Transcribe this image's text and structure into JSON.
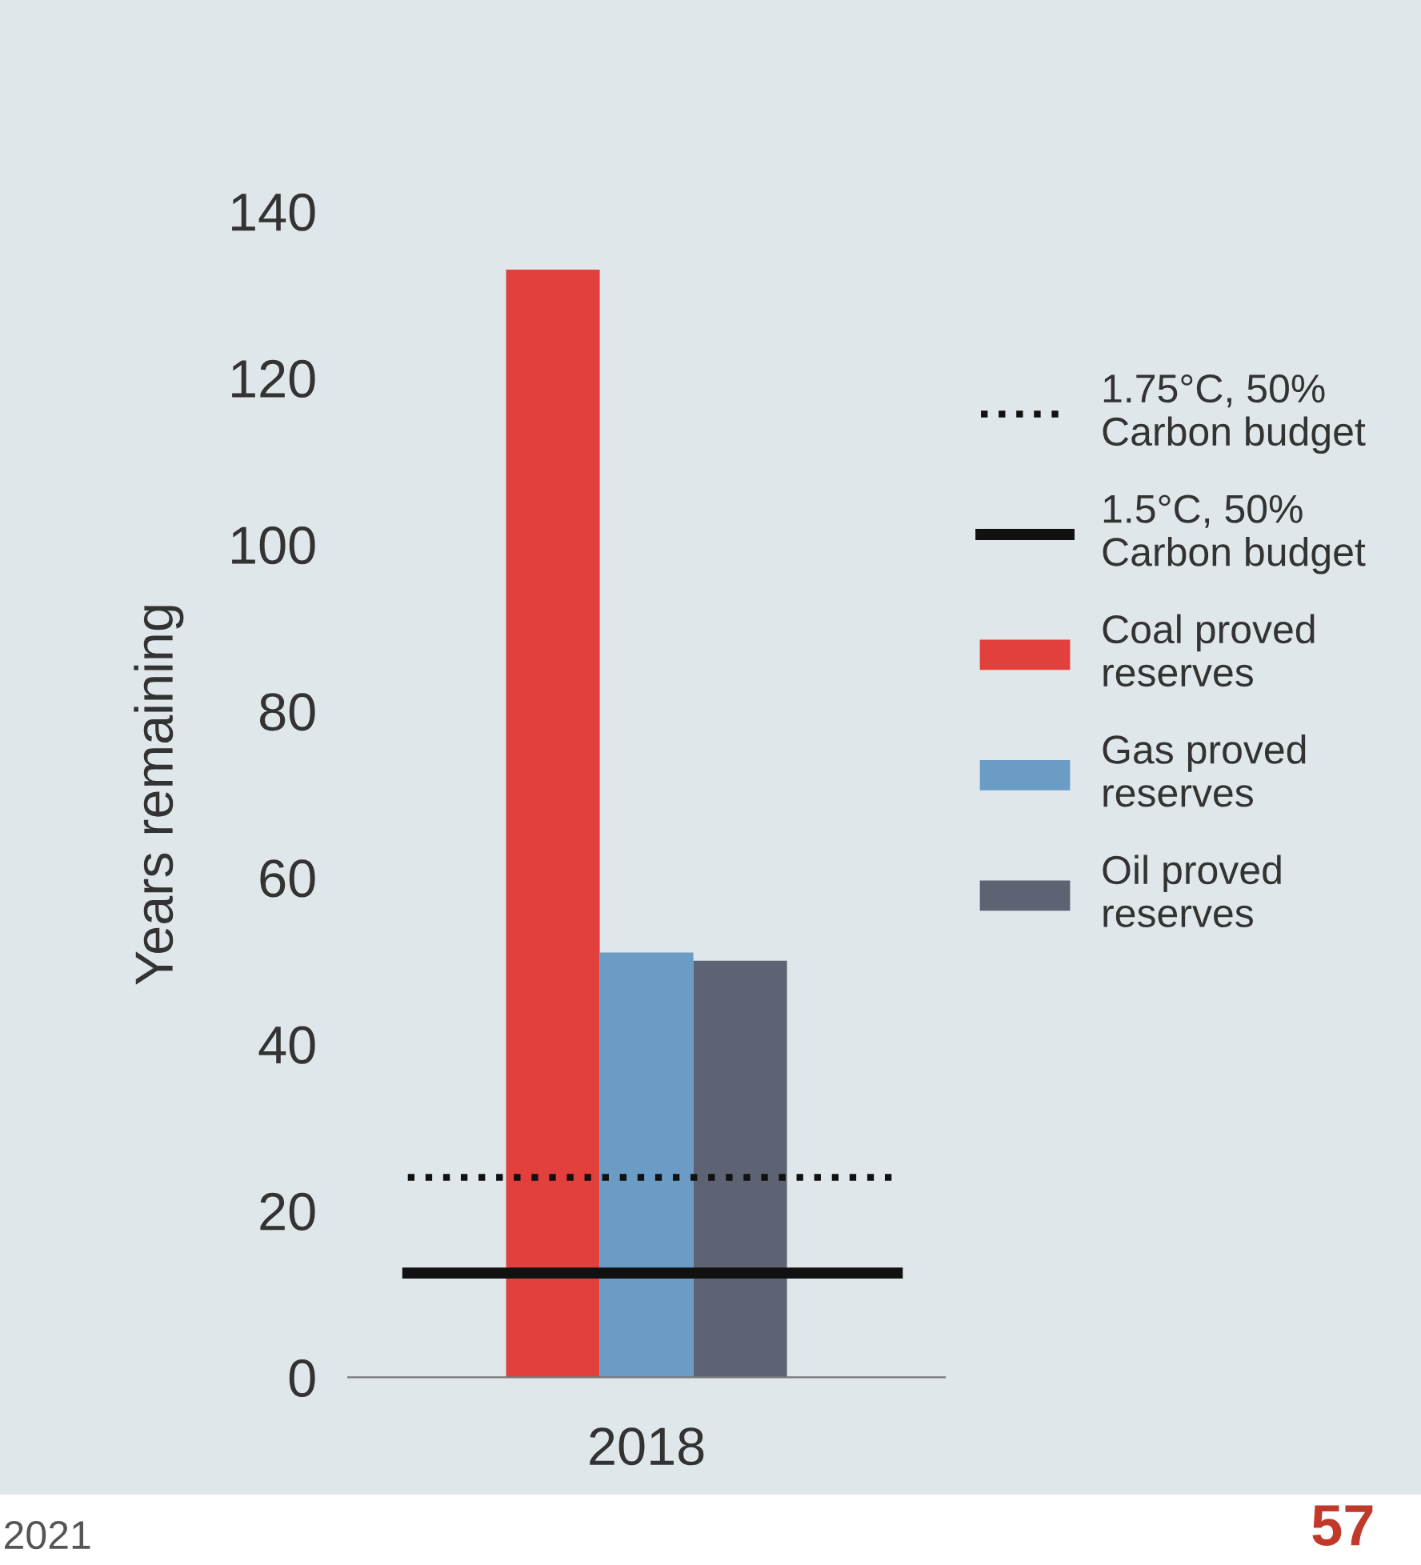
{
  "chart_data": {
    "type": "bar",
    "ylabel": "Years remaining",
    "categories": [
      "2018"
    ],
    "series": [
      {
        "name": "Coal proved\nreserves",
        "color": "#e2403c",
        "values": [
          133
        ]
      },
      {
        "name": "Gas proved\nreserves",
        "color": "#6b9cc6",
        "values": [
          51
        ]
      },
      {
        "name": "Oil proved\nreserves",
        "color": "#5e6373",
        "values": [
          50
        ]
      }
    ],
    "ylim": [
      0,
      140
    ],
    "yticks": [
      0,
      20,
      40,
      60,
      80,
      100,
      120,
      140
    ],
    "grid": false,
    "legend": "right",
    "ref_lines": [
      {
        "axis": "y",
        "value": 24,
        "label": "1.75°C, 50%\nCarbon budget",
        "color": "#111111",
        "line_style": "dotted"
      },
      {
        "axis": "y",
        "value": 12.5,
        "label": "1.5°C, 50%\nCarbon budget",
        "color": "#111111",
        "line_style": "solid"
      }
    ],
    "annotations": [
      "2021",
      "57"
    ]
  }
}
